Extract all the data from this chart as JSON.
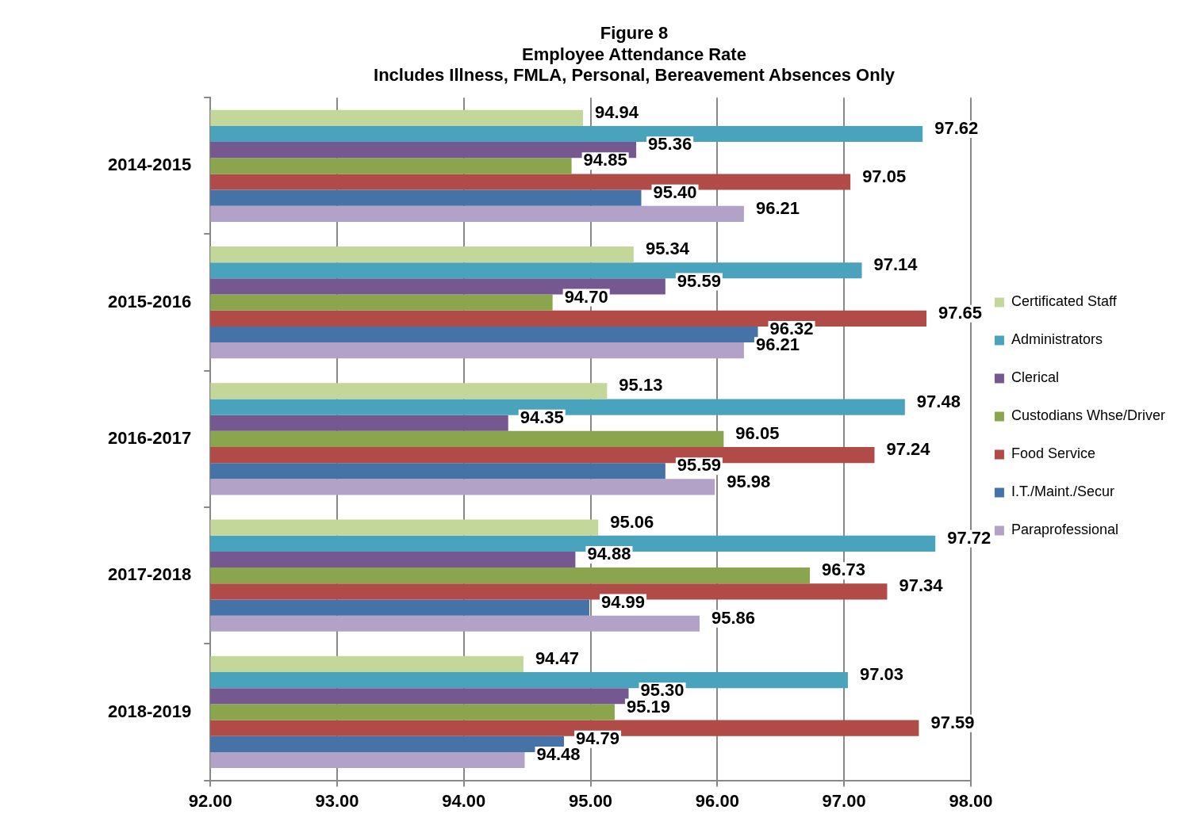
{
  "chart_data": {
    "type": "bar",
    "orientation": "horizontal",
    "title": "Figure 8\nEmployee Attendance Rate",
    "subtitle": "Includes Illness, FMLA, Personal, Bereavement Absences Only",
    "categories": [
      "2014-2015",
      "2015-2016",
      "2016-2017",
      "2017-2018",
      "2018-2019"
    ],
    "series": [
      {
        "name": "Certificated Staff",
        "color": "#c4d79b",
        "values": [
          94.94,
          95.34,
          95.13,
          95.06,
          94.47
        ],
        "value_labels": [
          "94.94",
          "95.34",
          "95.13",
          "95.06",
          "94.47"
        ]
      },
      {
        "name": "Administrators",
        "color": "#4aa3bd",
        "values": [
          97.62,
          97.14,
          97.48,
          97.72,
          97.03
        ],
        "value_labels": [
          "97.62",
          "97.14",
          "97.48",
          "97.72",
          "97.03"
        ]
      },
      {
        "name": "Clerical",
        "color": "#765891",
        "values": [
          95.36,
          95.59,
          94.35,
          94.88,
          95.3
        ],
        "value_labels": [
          "95.36",
          "95.59",
          "94.35",
          "94.88",
          "95.30"
        ]
      },
      {
        "name": "Custodians Whse/Driver",
        "color": "#8aa54e",
        "values": [
          94.85,
          94.7,
          96.05,
          96.73,
          95.19
        ],
        "value_labels": [
          "94.85",
          "94.70",
          "96.05",
          "96.73",
          "95.19"
        ]
      },
      {
        "name": "Food Service",
        "color": "#b14b48",
        "values": [
          97.05,
          97.65,
          97.24,
          97.34,
          97.59
        ],
        "value_labels": [
          "97.05",
          "97.65",
          "97.24",
          "97.34",
          "97.59"
        ]
      },
      {
        "name": "I.T./Maint./Secur",
        "color": "#4573a8",
        "values": [
          95.4,
          96.32,
          95.59,
          94.99,
          94.79
        ],
        "value_labels": [
          "95.40",
          "96.32",
          "95.59",
          "94.99",
          "94.79"
        ]
      },
      {
        "name": "Paraprofessional",
        "color": "#b3a2c7",
        "values": [
          96.21,
          96.21,
          95.98,
          95.86,
          94.48
        ],
        "value_labels": [
          "96.21",
          "96.21",
          "95.98",
          "95.86",
          "94.48"
        ]
      }
    ],
    "xlim": [
      92,
      98
    ],
    "xticks": [
      {
        "value": 92,
        "label": "92.00"
      },
      {
        "value": 93,
        "label": "93.00"
      },
      {
        "value": 94,
        "label": "94.00"
      },
      {
        "value": 95,
        "label": "95.00"
      },
      {
        "value": 96,
        "label": "96.00"
      },
      {
        "value": 97,
        "label": "97.00"
      },
      {
        "value": 98,
        "label": "98.00"
      }
    ],
    "grid": "x",
    "legend": "right"
  }
}
